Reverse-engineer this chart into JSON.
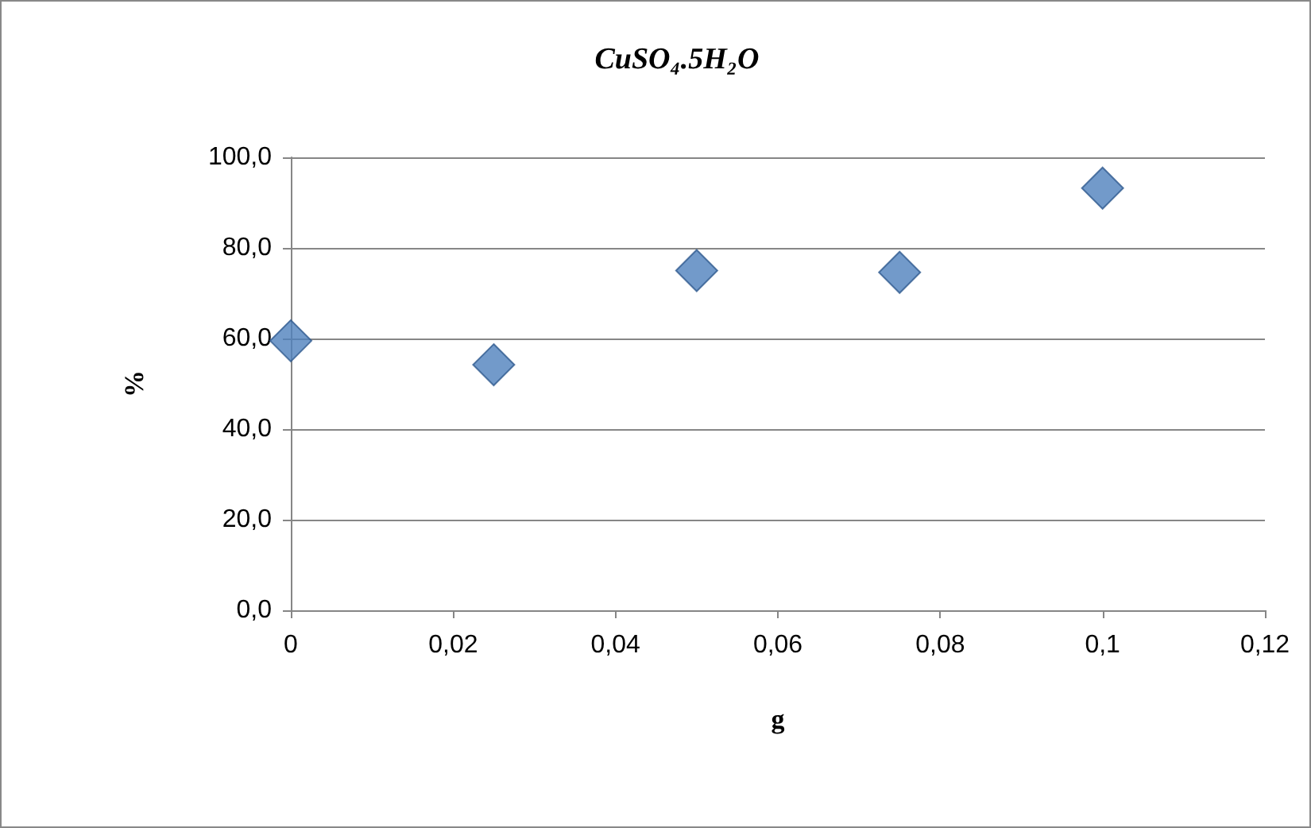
{
  "chart_data": {
    "type": "scatter",
    "title": "CuSO₄.5H₂O",
    "xlabel": "g",
    "ylabel": "%",
    "x": [
      0,
      0.025,
      0.05,
      0.075,
      0.1
    ],
    "series": [
      {
        "color": "#4f81bd",
        "values": [
          59.5,
          54.2,
          75.0,
          74.6,
          93.2
        ]
      }
    ],
    "xlim": [
      0,
      0.12
    ],
    "xticks": [
      0,
      {
        "value": 0.02,
        "label": "0,02"
      },
      {
        "value": 0.04,
        "label": "0,04"
      },
      {
        "value": 0.06,
        "label": "0,06"
      },
      {
        "value": 0.08,
        "label": "0,08"
      },
      {
        "value": 0.1,
        "label": "0,1"
      },
      {
        "value": 0.12,
        "label": "0,12"
      }
    ],
    "ylim": [
      0,
      100
    ],
    "yticks": [
      {
        "value": 0,
        "label": "0,0"
      },
      {
        "value": 20,
        "label": "20,0"
      },
      {
        "value": 40,
        "label": "40,0"
      },
      {
        "value": 60,
        "label": "60,0"
      },
      {
        "value": 80,
        "label": "80,0"
      },
      {
        "value": 100,
        "label": "100,0"
      }
    ],
    "grid": "y",
    "marker": "diamond"
  }
}
